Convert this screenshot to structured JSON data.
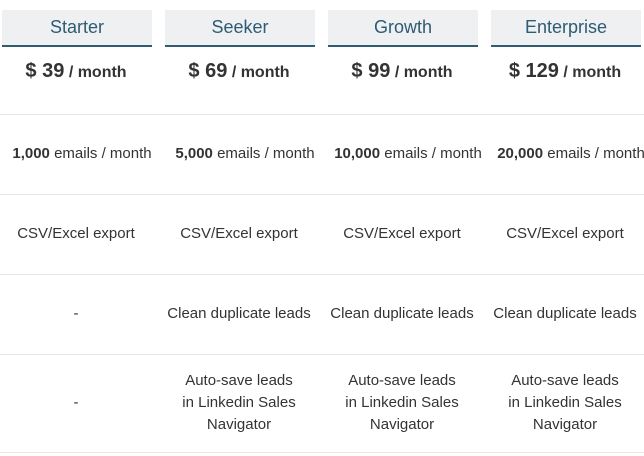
{
  "plans": [
    {
      "name": "Starter",
      "price": "$ 39",
      "period": "/ month",
      "emails_count": "1,000",
      "emails_unit": "emails / month",
      "export": "CSV/Excel export",
      "duplicates": "-",
      "autosave": "-"
    },
    {
      "name": "Seeker",
      "price": "$ 69",
      "period": "/ month",
      "emails_count": "5,000",
      "emails_unit": "emails / month",
      "export": "CSV/Excel export",
      "duplicates": "Clean duplicate leads",
      "autosave": "Auto-save leads in Linkedin Sales Navigator"
    },
    {
      "name": "Growth",
      "price": "$ 99",
      "period": "/ month",
      "emails_count": "10,000",
      "emails_unit": "emails / month",
      "export": "CSV/Excel export",
      "duplicates": "Clean duplicate leads",
      "autosave": "Auto-save leads in Linkedin Sales Navigator"
    },
    {
      "name": "Enterprise",
      "price": "$ 129",
      "period": "/ month",
      "emails_count": "20,000",
      "emails_unit": "emails / month",
      "export": "CSV/Excel export",
      "duplicates": "Clean duplicate leads",
      "autosave": "Auto-save leads in Linkedin Sales Navigator"
    }
  ],
  "colors": {
    "header_text": "#2f5b73",
    "header_bg": "#eef0f2",
    "divider": "#e4e6e8",
    "text": "#333333"
  }
}
